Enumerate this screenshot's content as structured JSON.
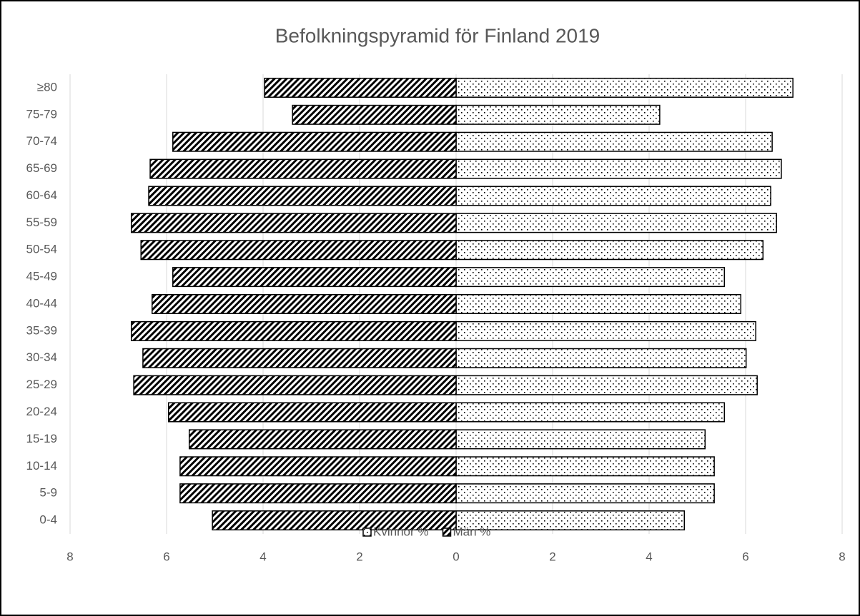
{
  "chart_data": {
    "type": "bar",
    "orientation": "horizontal",
    "stacked": false,
    "title": "Befolkningspyramid för Finland 2019",
    "categories": [
      "0-4",
      "5-9",
      "10-14",
      "15-19",
      "20-24",
      "25-29",
      "30-34",
      "35-39",
      "40-44",
      "45-49",
      "50-54",
      "55-59",
      "60-64",
      "65-69",
      "70-74",
      "75-79",
      "≥80"
    ],
    "series": [
      {
        "name": "Kvinnor %",
        "color": "#000000",
        "pattern": "dots",
        "values": [
          4.73,
          5.35,
          5.35,
          5.16,
          5.56,
          6.24,
          6.01,
          6.21,
          5.9,
          5.56,
          6.36,
          6.64,
          6.52,
          6.74,
          6.55,
          4.22,
          6.98
        ]
      },
      {
        "name": "Män %",
        "color": "#000000",
        "pattern": "hatch",
        "values": [
          -5.05,
          -5.72,
          -5.72,
          -5.53,
          -5.96,
          -6.68,
          -6.49,
          -6.73,
          -6.3,
          -5.87,
          -6.53,
          -6.73,
          -6.37,
          -6.34,
          -5.87,
          -3.39,
          -3.97
        ]
      }
    ],
    "xlim": [
      -8,
      8
    ],
    "xticks": [
      {
        "value": -8,
        "label": "8"
      },
      {
        "value": -6,
        "label": "6"
      },
      {
        "value": -4,
        "label": "4"
      },
      {
        "value": -2,
        "label": "2"
      },
      0,
      2,
      4,
      6,
      8
    ],
    "grid": true,
    "legend": "bottom"
  }
}
